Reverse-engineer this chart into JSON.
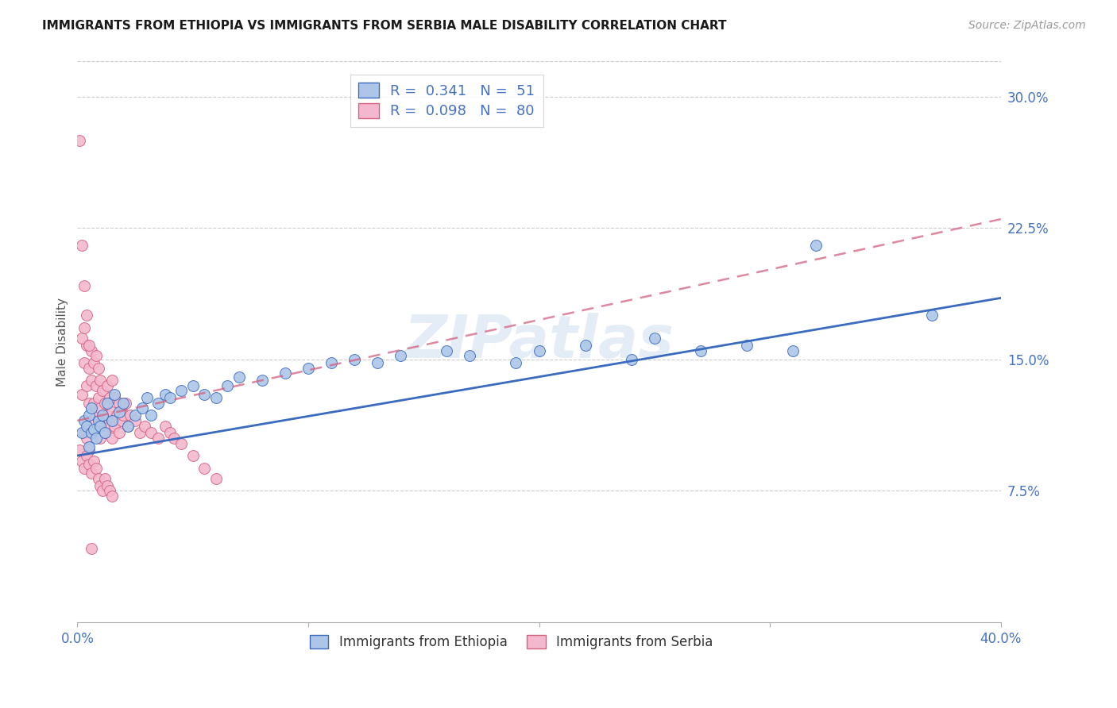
{
  "title": "IMMIGRANTS FROM ETHIOPIA VS IMMIGRANTS FROM SERBIA MALE DISABILITY CORRELATION CHART",
  "source": "Source: ZipAtlas.com",
  "ylabel": "Male Disability",
  "xlim": [
    0.0,
    0.4
  ],
  "ylim": [
    0.0,
    0.32
  ],
  "ytick_labels_right": [
    "7.5%",
    "15.0%",
    "22.5%",
    "30.0%"
  ],
  "ytick_values_right": [
    0.075,
    0.15,
    0.225,
    0.3
  ],
  "legend_ethiopia": "R =  0.341   N =  51",
  "legend_serbia": "R =  0.098   N =  80",
  "legend_label_ethiopia": "Immigrants from Ethiopia",
  "legend_label_serbia": "Immigrants from Serbia",
  "color_ethiopia": "#adc6e8",
  "color_serbia": "#f4b8ce",
  "line_color_ethiopia": "#3a6bbf",
  "line_color_serbia": "#d46080",
  "watermark": "ZIPatlas",
  "ethiopia_x": [
    0.002,
    0.003,
    0.004,
    0.005,
    0.005,
    0.006,
    0.006,
    0.007,
    0.008,
    0.009,
    0.01,
    0.011,
    0.012,
    0.013,
    0.015,
    0.016,
    0.018,
    0.02,
    0.022,
    0.025,
    0.028,
    0.03,
    0.032,
    0.035,
    0.038,
    0.04,
    0.045,
    0.05,
    0.055,
    0.06,
    0.065,
    0.07,
    0.08,
    0.09,
    0.1,
    0.11,
    0.12,
    0.13,
    0.14,
    0.16,
    0.17,
    0.19,
    0.2,
    0.22,
    0.24,
    0.25,
    0.27,
    0.29,
    0.31,
    0.37,
    0.32
  ],
  "ethiopia_y": [
    0.108,
    0.115,
    0.112,
    0.1,
    0.118,
    0.108,
    0.122,
    0.11,
    0.105,
    0.115,
    0.112,
    0.118,
    0.108,
    0.125,
    0.115,
    0.13,
    0.12,
    0.125,
    0.112,
    0.118,
    0.122,
    0.128,
    0.118,
    0.125,
    0.13,
    0.128,
    0.132,
    0.135,
    0.13,
    0.128,
    0.135,
    0.14,
    0.138,
    0.142,
    0.145,
    0.148,
    0.15,
    0.148,
    0.152,
    0.155,
    0.152,
    0.148,
    0.155,
    0.158,
    0.15,
    0.162,
    0.155,
    0.158,
    0.155,
    0.175,
    0.215
  ],
  "serbia_x": [
    0.001,
    0.002,
    0.002,
    0.003,
    0.003,
    0.003,
    0.004,
    0.004,
    0.004,
    0.005,
    0.005,
    0.005,
    0.006,
    0.006,
    0.006,
    0.007,
    0.007,
    0.007,
    0.008,
    0.008,
    0.008,
    0.009,
    0.009,
    0.009,
    0.01,
    0.01,
    0.01,
    0.011,
    0.011,
    0.012,
    0.012,
    0.013,
    0.013,
    0.014,
    0.014,
    0.015,
    0.015,
    0.015,
    0.016,
    0.016,
    0.017,
    0.018,
    0.018,
    0.019,
    0.02,
    0.021,
    0.022,
    0.023,
    0.025,
    0.027,
    0.029,
    0.032,
    0.035,
    0.038,
    0.04,
    0.042,
    0.045,
    0.05,
    0.055,
    0.06,
    0.001,
    0.002,
    0.003,
    0.004,
    0.005,
    0.006,
    0.007,
    0.008,
    0.009,
    0.01,
    0.011,
    0.012,
    0.013,
    0.014,
    0.015,
    0.002,
    0.003,
    0.004,
    0.005,
    0.006
  ],
  "serbia_y": [
    0.275,
    0.215,
    0.13,
    0.108,
    0.148,
    0.192,
    0.105,
    0.135,
    0.158,
    0.098,
    0.125,
    0.145,
    0.115,
    0.138,
    0.155,
    0.108,
    0.125,
    0.148,
    0.118,
    0.135,
    0.152,
    0.112,
    0.128,
    0.145,
    0.105,
    0.122,
    0.138,
    0.115,
    0.132,
    0.108,
    0.125,
    0.118,
    0.135,
    0.112,
    0.128,
    0.105,
    0.12,
    0.138,
    0.112,
    0.128,
    0.118,
    0.108,
    0.125,
    0.115,
    0.118,
    0.125,
    0.112,
    0.118,
    0.115,
    0.108,
    0.112,
    0.108,
    0.105,
    0.112,
    0.108,
    0.105,
    0.102,
    0.095,
    0.088,
    0.082,
    0.098,
    0.092,
    0.088,
    0.095,
    0.09,
    0.085,
    0.092,
    0.088,
    0.082,
    0.078,
    0.075,
    0.082,
    0.078,
    0.075,
    0.072,
    0.162,
    0.168,
    0.175,
    0.158,
    0.042
  ],
  "eth_line_x": [
    0.0,
    0.4
  ],
  "eth_line_y": [
    0.095,
    0.185
  ],
  "ser_line_x": [
    0.0,
    0.4
  ],
  "ser_line_y": [
    0.115,
    0.23
  ]
}
